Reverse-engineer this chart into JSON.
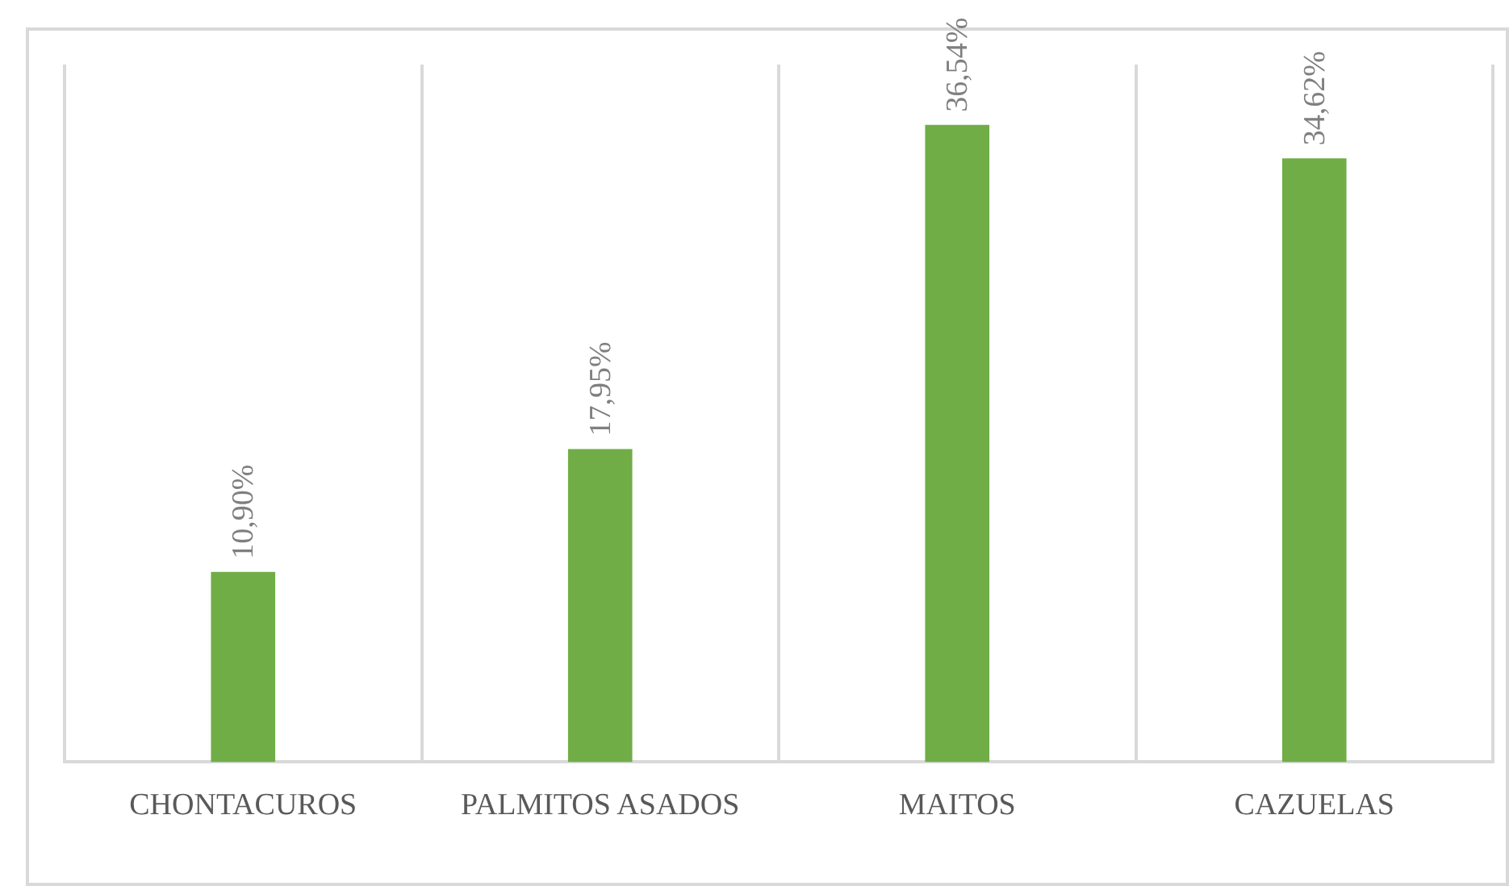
{
  "chart_data": {
    "type": "bar",
    "categories": [
      "CHONTACUROS",
      "PALMITOS ASADOS",
      "MAITOS",
      "CAZUELAS"
    ],
    "values": [
      10.9,
      17.95,
      36.54,
      34.62
    ],
    "color": "#70ad47",
    "value_labels": [
      "10,90%",
      "17,95%",
      "36,54%",
      "34,62%"
    ],
    "grid": "x",
    "tick_labels": "x",
    "legend": false
  }
}
